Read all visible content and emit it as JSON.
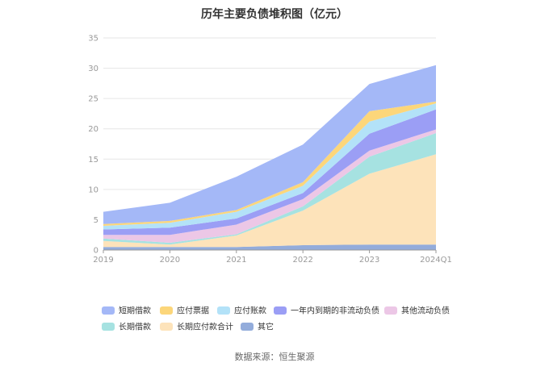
{
  "chart_data": {
    "type": "area",
    "stacked": true,
    "title": "历年主要负债堆积图（亿元）",
    "categories": [
      "2019",
      "2020",
      "2021",
      "2022",
      "2023",
      "2024Q1"
    ],
    "ylim": [
      0,
      35
    ],
    "yticks": [
      0,
      5,
      10,
      15,
      20,
      25,
      30,
      35
    ],
    "grid": true,
    "legend_position": "bottom",
    "series": [
      {
        "name": "短期借款",
        "color": "#a4b8f7",
        "values": [
          2.0,
          3.0,
          5.5,
          6.2,
          4.5,
          6.0
        ]
      },
      {
        "name": "应付票据",
        "color": "#fcd67a",
        "values": [
          0.3,
          0.3,
          0.3,
          0.6,
          1.7,
          0.3
        ]
      },
      {
        "name": "应付账款",
        "color": "#b3e2f8",
        "values": [
          0.6,
          0.8,
          1.1,
          1.2,
          2.0,
          1.0
        ]
      },
      {
        "name": "一年内到期的非流动负债",
        "color": "#9b9ef5",
        "values": [
          0.9,
          1.2,
          1.0,
          1.0,
          2.8,
          3.3
        ]
      },
      {
        "name": "其他流动负债",
        "color": "#ecc7e6",
        "values": [
          0.6,
          1.3,
          1.6,
          1.2,
          1.0,
          0.6
        ]
      },
      {
        "name": "长期借款",
        "color": "#a6e2e1",
        "values": [
          0.4,
          0.3,
          0.2,
          0.7,
          2.8,
          3.5
        ]
      },
      {
        "name": "长期应付款合计",
        "color": "#fde3ba",
        "values": [
          1.0,
          0.4,
          1.9,
          5.7,
          11.7,
          14.9
        ]
      },
      {
        "name": "其它",
        "color": "#93acdb",
        "values": [
          0.5,
          0.5,
          0.5,
          0.8,
          0.9,
          0.9
        ]
      }
    ],
    "source": "数据来源：恒生聚源"
  }
}
